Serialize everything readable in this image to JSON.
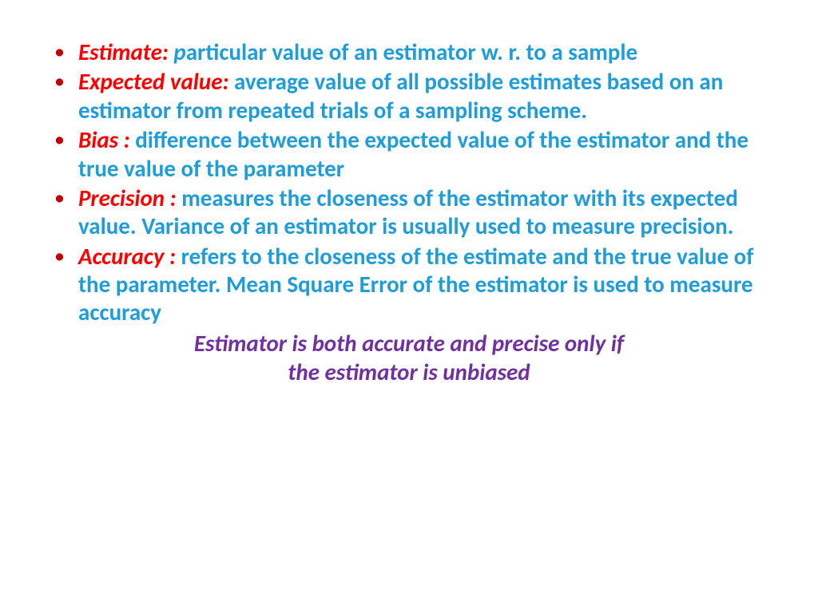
{
  "colors": {
    "bullet": "#c00000",
    "term": "#ff0000",
    "desc": "#1f9dd9",
    "footer": "#7030a0",
    "background": "#ffffff"
  },
  "typography": {
    "item_fontsize": 29,
    "footer_fontsize": 29,
    "font_family": "Calibri, Arial, sans-serif"
  },
  "items": [
    {
      "term": "Estimate: ",
      "prefix": "p",
      "desc": "articular value of an estimator w. r. to a sample"
    },
    {
      "term": "Expected value: ",
      "prefix": "",
      "desc": "average value of all possible estimates based on an estimator from repeated trials of a sampling scheme."
    },
    {
      "term": "Bias : ",
      "prefix": "",
      "desc": "difference between the expected value of the estimator and the true value of the parameter"
    },
    {
      "term": "Precision : ",
      "prefix": "",
      "desc": "measures the closeness of the estimator with its expected value. Variance of an estimator is usually used to measure precision."
    },
    {
      "term": "Accuracy : ",
      "prefix": "",
      "desc": "refers to the closeness of the estimate and the true value of the parameter. Mean Square Error of the estimator is used to measure accuracy"
    }
  ],
  "footer": {
    "line1": "Estimator is both accurate and precise only if",
    "line2": "the estimator is unbiased"
  }
}
